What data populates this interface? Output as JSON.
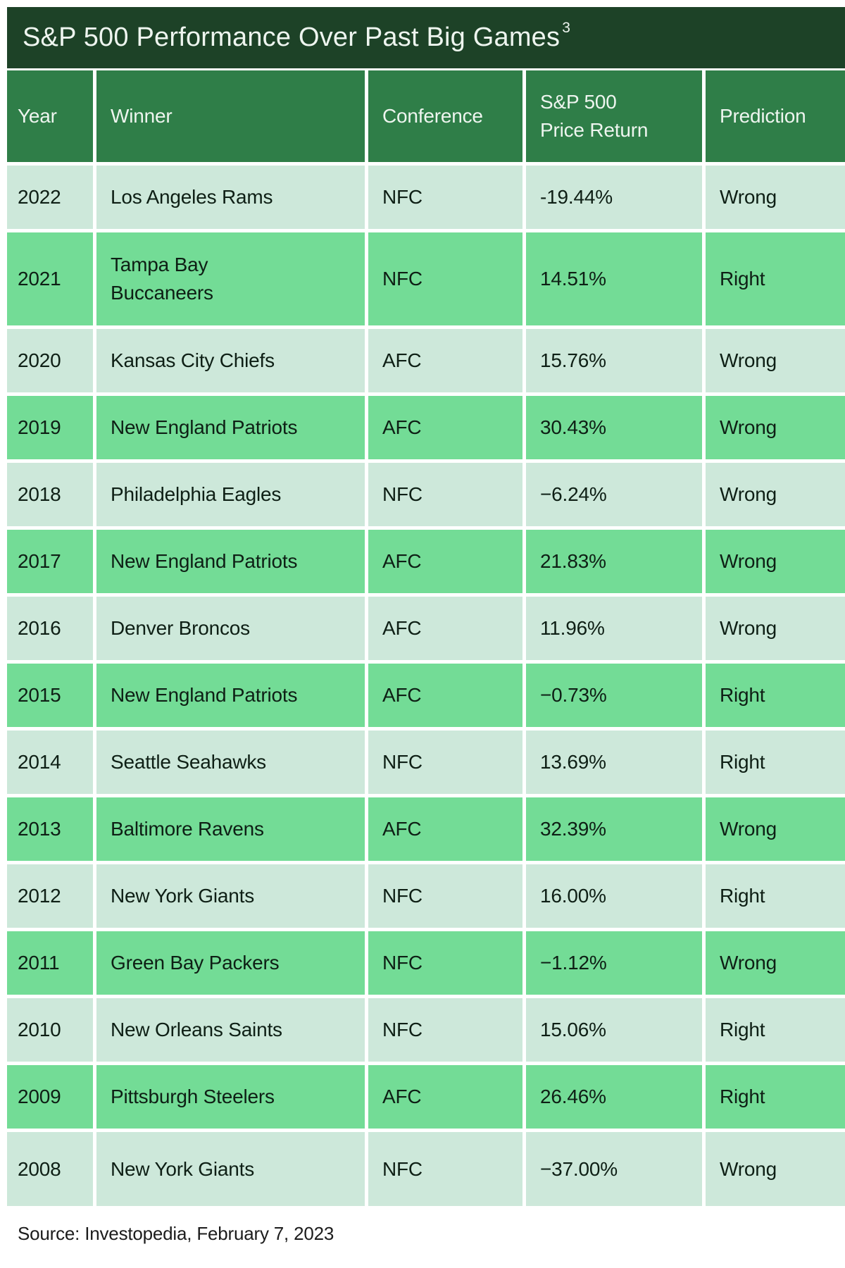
{
  "colors": {
    "title_bar_bg": "#1d4227",
    "header_bg": "#2f7e48",
    "row_light_bg": "#cde8da",
    "row_green_bg": "#73dc96",
    "header_text": "#eef5ef",
    "body_text": "#0e1f15"
  },
  "title": {
    "text": "S&P 500 Performance Over Past Big Games",
    "superscript": "3"
  },
  "source_note": "Source: Investopedia, February 7, 2023",
  "chart_data": {
    "type": "table",
    "title": "S&P 500 Performance Over Past Big Games",
    "columns": [
      "Year",
      "Winner",
      "Conference",
      "S&P 500 Price Return",
      "Prediction"
    ],
    "rows": [
      {
        "year": "2022",
        "winner": "Los Angeles Rams",
        "conference": "NFC",
        "price_return": "-19.44%",
        "prediction": "Wrong"
      },
      {
        "year": "2021",
        "winner": "Tampa Bay Buccaneers",
        "conference": "NFC",
        "price_return": "14.51%",
        "prediction": "Right"
      },
      {
        "year": "2020",
        "winner": "Kansas City Chiefs",
        "conference": "AFC",
        "price_return": "15.76%",
        "prediction": "Wrong"
      },
      {
        "year": "2019",
        "winner": "New England Patriots",
        "conference": "AFC",
        "price_return": "30.43%",
        "prediction": "Wrong"
      },
      {
        "year": "2018",
        "winner": "Philadelphia Eagles",
        "conference": "NFC",
        "price_return": "−6.24%",
        "prediction": "Wrong"
      },
      {
        "year": "2017",
        "winner": "New England Patriots",
        "conference": "AFC",
        "price_return": "21.83%",
        "prediction": "Wrong"
      },
      {
        "year": "2016",
        "winner": "Denver Broncos",
        "conference": "AFC",
        "price_return": "11.96%",
        "prediction": "Wrong"
      },
      {
        "year": "2015",
        "winner": "New England Patriots",
        "conference": "AFC",
        "price_return": "−0.73%",
        "prediction": "Right"
      },
      {
        "year": "2014",
        "winner": "Seattle Seahawks",
        "conference": "NFC",
        "price_return": "13.69%",
        "prediction": "Right"
      },
      {
        "year": "2013",
        "winner": "Baltimore Ravens",
        "conference": "AFC",
        "price_return": "32.39%",
        "prediction": "Wrong"
      },
      {
        "year": "2012",
        "winner": "New York Giants",
        "conference": "NFC",
        "price_return": "16.00%",
        "prediction": "Right"
      },
      {
        "year": "2011",
        "winner": "Green Bay Packers",
        "conference": "NFC",
        "price_return": "−1.12%",
        "prediction": "Wrong"
      },
      {
        "year": "2010",
        "winner": "New Orleans Saints",
        "conference": "NFC",
        "price_return": "15.06%",
        "prediction": "Right"
      },
      {
        "year": "2009",
        "winner": "Pittsburgh Steelers",
        "conference": "AFC",
        "price_return": "26.46%",
        "prediction": "Right"
      },
      {
        "year": "2008",
        "winner": "New York Giants",
        "conference": "NFC",
        "price_return": "−37.00%",
        "prediction": "Wrong"
      }
    ]
  }
}
